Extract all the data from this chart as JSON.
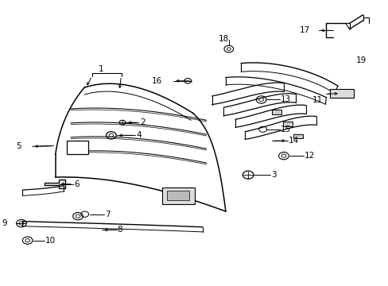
{
  "background_color": "#ffffff",
  "fig_width": 4.89,
  "fig_height": 3.6,
  "dpi": 100,
  "font_size": 7.5,
  "text_color": "#000000"
}
